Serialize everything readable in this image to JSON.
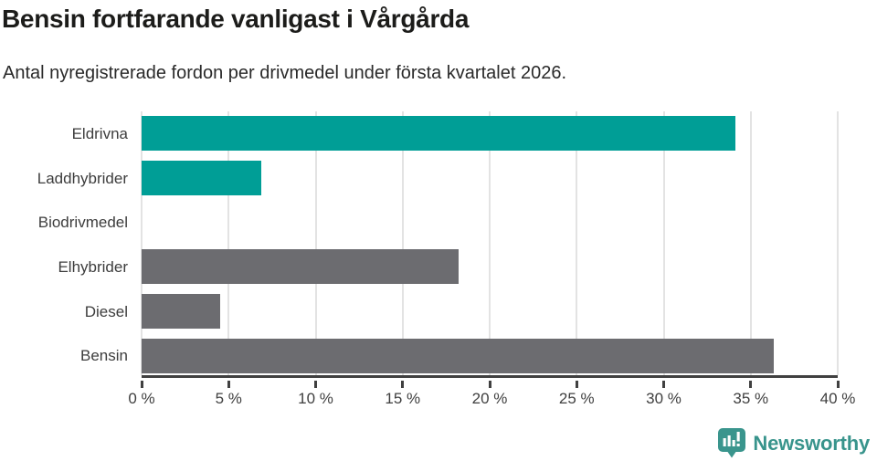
{
  "header": {
    "title": "Bensin fortfarande vanligast i Vårgårda",
    "subtitle": "Antal nyregistrerade fordon per drivmedel under första kvartalet 2026."
  },
  "chart_data": {
    "type": "bar",
    "orientation": "horizontal",
    "title": "Bensin fortfarande vanligast i Vårgårda",
    "subtitle": "Antal nyregistrerade fordon per drivmedel under första kvartalet 2026.",
    "categories": [
      "Eldrivna",
      "Laddhybrider",
      "Biodrivmedel",
      "Elhybrider",
      "Diesel",
      "Bensin"
    ],
    "values": [
      34.1,
      6.9,
      0,
      18.2,
      4.5,
      36.3
    ],
    "value_unit": "%",
    "xlim": [
      0,
      40
    ],
    "x_ticks": [
      0,
      5,
      10,
      15,
      20,
      25,
      30,
      35,
      40
    ],
    "x_tick_label_suffix": " %",
    "bar_colors": [
      "#009e96",
      "#009e96",
      "#009e96",
      "#6c6c70",
      "#6c6c70",
      "#6c6c70"
    ],
    "grid": "vertical-gridlines-on",
    "legend": "none"
  },
  "branding": {
    "logo_text": "Newsworthy",
    "logo_icon": "newsworthy-speech-bubble-chart-icon",
    "logo_color": "#3a958d"
  },
  "style_colors": {
    "teal": "#009e96",
    "gray": "#6c6c70",
    "gridline": "#e3e3e3",
    "axis_line": "#404040",
    "title_text": "#1c1c1a",
    "body_text": "#3d3d3d"
  }
}
